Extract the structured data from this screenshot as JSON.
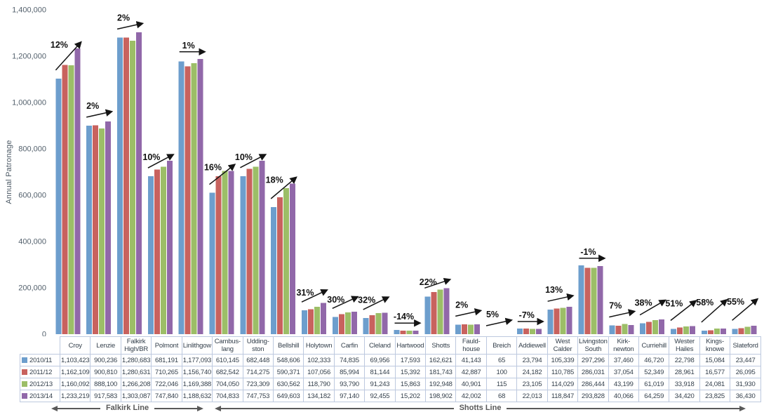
{
  "chart_data": {
    "type": "bar",
    "title": "",
    "ylabel": "Annual Patronage",
    "ylim": [
      0,
      1400000
    ],
    "y_tick_step": 200000,
    "y_tick_labels": [
      "0",
      "200,000",
      "400,000",
      "600,000",
      "800,000",
      "1,000,000",
      "1,200,000",
      "1,400,000"
    ],
    "grid": false,
    "legend_position": "table-row-headers",
    "categories": [
      "Croy",
      "Lenzie",
      "Falkirk High/BR",
      "Polmont",
      "Linlithgow",
      "Cambuslang",
      "Uddingston",
      "Bellshill",
      "Holytown",
      "Carfin",
      "Cleland",
      "Hartwood",
      "Shotts",
      "Fauldhouse",
      "Breich",
      "Addiewell",
      "West Calder",
      "Livingston South",
      "Kirknewton",
      "Curriehill",
      "Wester Hailes",
      "Kingsknowe",
      "Slateford"
    ],
    "category_display": [
      "Croy",
      "Lenzie",
      "Falkirk\nHigh/BR",
      "Polmont",
      "Linlithgow",
      "Cambus-\nlang",
      "Udding-\nston",
      "Bellshill",
      "Holytown",
      "Carfin",
      "Cleland",
      "Hartwood",
      "Shotts",
      "Fauld-\nhouse",
      "Breich",
      "Addiewell",
      "West\nCalder",
      "Livingston\nSouth",
      "Kirk-\nnewton",
      "Curriehill",
      "Wester\nHailes",
      "Kings-\nknowe",
      "Slateford"
    ],
    "series": [
      {
        "name": "2010/11",
        "color": "#6d9ecd",
        "values": [
          1103423,
          900236,
          1280683,
          681191,
          1177093,
          610145,
          682448,
          548606,
          102333,
          74835,
          69956,
          17593,
          162621,
          41143,
          65,
          23794,
          105339,
          297296,
          37460,
          46720,
          22798,
          15084,
          23447
        ]
      },
      {
        "name": "2011/12",
        "color": "#c8625e",
        "values": [
          1162109,
          900810,
          1280631,
          710265,
          1156740,
          682542,
          714275,
          590371,
          107056,
          85994,
          81144,
          15392,
          181743,
          42887,
          100,
          24182,
          110785,
          286031,
          37054,
          52349,
          28961,
          16577,
          26095
        ]
      },
      {
        "name": "2012/13",
        "color": "#9cbe67",
        "values": [
          1160092,
          888100,
          1266208,
          722046,
          1169388,
          704050,
          723309,
          630562,
          118790,
          93790,
          91243,
          15863,
          192948,
          40901,
          115,
          23105,
          114029,
          286444,
          43199,
          61019,
          33918,
          24081,
          31930
        ]
      },
      {
        "name": "2013/14",
        "color": "#9168a9",
        "values": [
          1233219,
          917583,
          1303087,
          747840,
          1188632,
          704833,
          747753,
          649603,
          134182,
          97140,
          92455,
          15202,
          198902,
          42002,
          68,
          22013,
          118847,
          293828,
          40066,
          64259,
          34420,
          23825,
          36430
        ]
      }
    ],
    "annotations": [
      {
        "label": "12%",
        "trend": "up"
      },
      {
        "label": "2%",
        "trend": "up"
      },
      {
        "label": "2%",
        "trend": "up"
      },
      {
        "label": "10%",
        "trend": "up"
      },
      {
        "label": "1%",
        "trend": "flat"
      },
      {
        "label": "16%",
        "trend": "up"
      },
      {
        "label": "10%",
        "trend": "up"
      },
      {
        "label": "18%",
        "trend": "up"
      },
      {
        "label": "31%",
        "trend": "up"
      },
      {
        "label": "30%",
        "trend": "up"
      },
      {
        "label": "32%",
        "trend": "up"
      },
      {
        "label": "-14%",
        "trend": "flat"
      },
      {
        "label": "22%",
        "trend": "up"
      },
      {
        "label": "2%",
        "trend": "up"
      },
      {
        "label": "5%",
        "trend": "up"
      },
      {
        "label": "-7%",
        "trend": "flat"
      },
      {
        "label": "13%",
        "trend": "up"
      },
      {
        "label": "-1%",
        "trend": "flat"
      },
      {
        "label": "7%",
        "trend": "up"
      },
      {
        "label": "38%",
        "trend": "up"
      },
      {
        "label": "51%",
        "trend": "up"
      },
      {
        "label": "58%",
        "trend": "up"
      },
      {
        "label": "55%",
        "trend": "up"
      }
    ],
    "line_groups": [
      {
        "label": "Falkirk Line",
        "start_index": 0,
        "end_index": 4
      },
      {
        "label": "Shotts Line",
        "start_index": 5,
        "end_index": 22
      }
    ],
    "colors": {
      "axis_text": "#53606c",
      "annotation_text": "#111111",
      "table_border": "#bdc9df",
      "table_text": "#333f4b",
      "line_group": "#595959"
    }
  }
}
